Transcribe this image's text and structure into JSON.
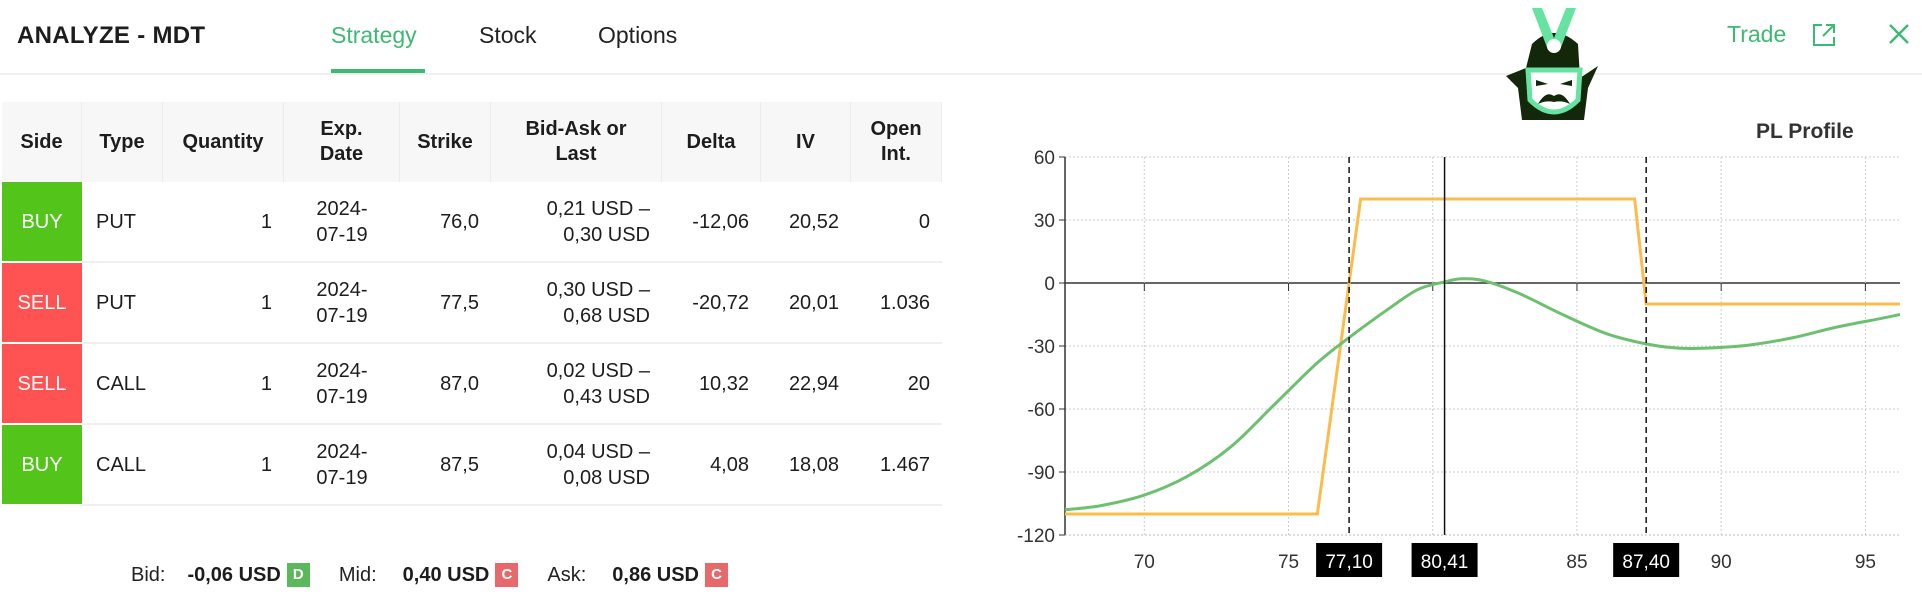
{
  "header": {
    "title": "ANALYZE - MDT",
    "tabs": [
      {
        "label": "Strategy",
        "active": true
      },
      {
        "label": "Stock",
        "active": false
      },
      {
        "label": "Options",
        "active": false
      }
    ],
    "trade_label": "Trade",
    "icons": [
      "samurai-logo",
      "external-link-icon",
      "close-icon"
    ],
    "accent_color": "#3dba72"
  },
  "table": {
    "headers": [
      "Side",
      "Type",
      "Quantity",
      "Exp.\nDate",
      "Strike",
      "Bid-Ask or\nLast",
      "Delta",
      "IV",
      "Open\nInt."
    ],
    "rows": [
      {
        "side": "BUY",
        "type": "PUT",
        "quantity": "1",
        "exp": "2024-07-19",
        "strike": "76,0",
        "bid_ask": "0,21 USD – 0,30 USD",
        "delta": "-12,06",
        "iv": "20,52",
        "open_int": "0"
      },
      {
        "side": "SELL",
        "type": "PUT",
        "quantity": "1",
        "exp": "2024-07-19",
        "strike": "77,5",
        "bid_ask": "0,30 USD – 0,68 USD",
        "delta": "-20,72",
        "iv": "20,01",
        "open_int": "1.036"
      },
      {
        "side": "SELL",
        "type": "CALL",
        "quantity": "1",
        "exp": "2024-07-19",
        "strike": "87,0",
        "bid_ask": "0,02 USD – 0,43 USD",
        "delta": "10,32",
        "iv": "22,94",
        "open_int": "20"
      },
      {
        "side": "BUY",
        "type": "CALL",
        "quantity": "1",
        "exp": "2024-07-19",
        "strike": "87,5",
        "bid_ask": "0,04 USD – 0,08 USD",
        "delta": "4,08",
        "iv": "18,08",
        "open_int": "1.467"
      }
    ],
    "side_colors": {
      "BUY": "#52c41a",
      "SELL": "#fe5253"
    }
  },
  "footer": {
    "bid_label": "Bid:",
    "bid_value": "-0,06 USD",
    "bid_badge": "D",
    "bid_badge_color": "#5cb85c",
    "mid_label": "Mid:",
    "mid_value": "0,40 USD",
    "mid_badge": "C",
    "mid_badge_color": "#e8696b",
    "ask_label": "Ask:",
    "ask_value": "0,86 USD",
    "ask_badge": "C",
    "ask_badge_color": "#e8696b"
  },
  "chart_data": {
    "type": "line",
    "title": "PL Profile",
    "xlim": [
      67.25,
      96.2
    ],
    "ylim": [
      -120,
      60
    ],
    "xticks": [
      70,
      75,
      85,
      90,
      95
    ],
    "yticks": [
      60,
      30,
      0,
      -30,
      -60,
      -90,
      -120
    ],
    "grid": true,
    "series": [
      {
        "color": "#fbbc4b",
        "points": [
          [
            67.25,
            -110
          ],
          [
            76.0,
            -110
          ],
          [
            77.5,
            40
          ],
          [
            87.0,
            40
          ],
          [
            87.4,
            -10
          ],
          [
            96.2,
            -10
          ]
        ]
      },
      {
        "color": "#6cc070",
        "points": [
          [
            67.25,
            -108
          ],
          [
            68.5,
            -106
          ],
          [
            70,
            -101
          ],
          [
            71.5,
            -92
          ],
          [
            73,
            -78
          ],
          [
            74.5,
            -58
          ],
          [
            76,
            -38
          ],
          [
            77.1,
            -26
          ],
          [
            78.5,
            -12
          ],
          [
            79.5,
            -3
          ],
          [
            80.41,
            0.5
          ],
          [
            81,
            2
          ],
          [
            81.8,
            1
          ],
          [
            83,
            -5
          ],
          [
            84.5,
            -15
          ],
          [
            86,
            -24
          ],
          [
            87.4,
            -29
          ],
          [
            88.5,
            -31
          ],
          [
            89.5,
            -31
          ],
          [
            91,
            -29.5
          ],
          [
            92.5,
            -26
          ],
          [
            94,
            -21
          ],
          [
            95.5,
            -17
          ],
          [
            96.2,
            -15
          ]
        ]
      }
    ],
    "markers": [
      {
        "x": 77.1,
        "label": "77,10",
        "style": "dashed"
      },
      {
        "x": 80.41,
        "label": "80,41",
        "style": "solid"
      },
      {
        "x": 87.4,
        "label": "87,40",
        "style": "dashed"
      }
    ]
  }
}
